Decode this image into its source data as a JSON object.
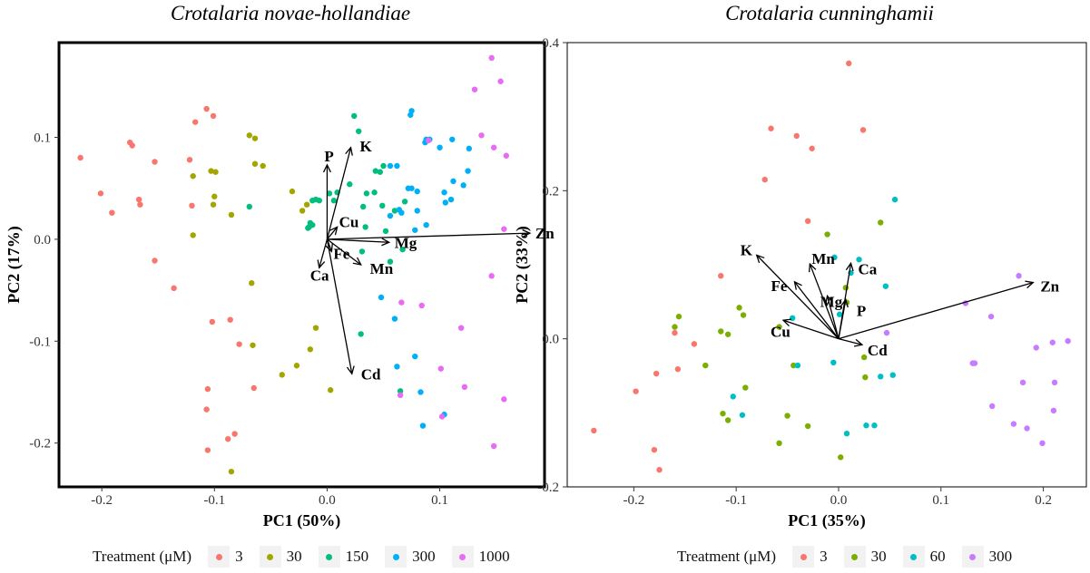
{
  "chart_data": [
    {
      "type": "scatter",
      "title": "Crotalaria novae-hollandiae",
      "xlabel": "PC1 (50%)",
      "ylabel": "PC2 (17%)",
      "xlim": [
        -0.238,
        0.193
      ],
      "ylim": [
        -0.243,
        0.193
      ],
      "xticks": [
        -0.2,
        -0.1,
        0.0,
        0.1
      ],
      "xtick_labels": [
        "-0.2",
        "-0.1",
        "0.0",
        "0.1"
      ],
      "yticks": [
        -0.2,
        -0.1,
        0.0,
        0.1
      ],
      "ytick_labels": [
        "-0.2",
        "-0.1",
        "0.0",
        "0.1"
      ],
      "grid": false,
      "legend_title": "Treatment (μM)",
      "legend_position": "bottom",
      "series": [
        {
          "name": "3",
          "color": "#f8766d",
          "points": [
            [
              -0.219,
              0.08
            ],
            [
              -0.201,
              0.045
            ],
            [
              -0.191,
              0.026
            ],
            [
              -0.175,
              0.095
            ],
            [
              -0.173,
              0.092
            ],
            [
              -0.167,
              0.039
            ],
            [
              -0.166,
              0.034
            ],
            [
              -0.153,
              0.076
            ],
            [
              -0.153,
              -0.021
            ],
            [
              -0.136,
              -0.048
            ],
            [
              -0.122,
              0.078
            ],
            [
              -0.12,
              0.033
            ],
            [
              -0.117,
              0.115
            ],
            [
              -0.107,
              0.128
            ],
            [
              -0.106,
              -0.147
            ],
            [
              -0.107,
              -0.167
            ],
            [
              -0.106,
              -0.207
            ],
            [
              -0.102,
              -0.081
            ],
            [
              -0.101,
              0.121
            ],
            [
              -0.088,
              -0.196
            ],
            [
              -0.086,
              -0.079
            ],
            [
              -0.082,
              -0.191
            ],
            [
              -0.078,
              -0.103
            ],
            [
              -0.065,
              -0.146
            ]
          ]
        },
        {
          "name": "30",
          "color": "#a3a500",
          "points": [
            [
              -0.119,
              0.062
            ],
            [
              -0.119,
              0.004
            ],
            [
              -0.103,
              0.067
            ],
            [
              -0.099,
              0.066
            ],
            [
              -0.101,
              0.034
            ],
            [
              -0.1,
              0.042
            ],
            [
              -0.085,
              0.024
            ],
            [
              -0.085,
              -0.228
            ],
            [
              -0.069,
              0.102
            ],
            [
              -0.064,
              0.099
            ],
            [
              -0.064,
              0.074
            ],
            [
              -0.057,
              0.072
            ],
            [
              -0.067,
              -0.043
            ],
            [
              -0.066,
              -0.104
            ],
            [
              -0.04,
              -0.133
            ],
            [
              -0.031,
              0.047
            ],
            [
              -0.027,
              -0.124
            ],
            [
              -0.015,
              -0.108
            ],
            [
              -0.01,
              -0.087
            ],
            [
              -0.022,
              0.028
            ],
            [
              -0.018,
              0.034
            ],
            [
              0.003,
              -0.148
            ]
          ]
        },
        {
          "name": "150",
          "color": "#00bf7d",
          "points": [
            [
              -0.069,
              0.032
            ],
            [
              -0.013,
              0.038
            ],
            [
              -0.01,
              0.039
            ],
            [
              -0.007,
              0.038
            ],
            [
              -0.016,
              0.012
            ],
            [
              -0.015,
              0.016
            ],
            [
              -0.013,
              0.014
            ],
            [
              -0.017,
              0.011
            ],
            [
              0.002,
              0.045
            ],
            [
              0.006,
              0.038
            ],
            [
              0.009,
              0.046
            ],
            [
              0.024,
              0.121
            ],
            [
              0.028,
              0.106
            ],
            [
              0.02,
              0.054
            ],
            [
              0.032,
              0.032
            ],
            [
              0.034,
              0.012
            ],
            [
              0.035,
              0.045
            ],
            [
              0.043,
              0.067
            ],
            [
              0.047,
              0.066
            ],
            [
              0.05,
              0.072
            ],
            [
              0.042,
              0.046
            ],
            [
              0.049,
              0.033
            ],
            [
              0.031,
              -0.012
            ],
            [
              0.056,
              -0.022
            ],
            [
              0.067,
              -0.01
            ],
            [
              0.06,
              0.028
            ],
            [
              0.069,
              0.037
            ],
            [
              0.065,
              -0.149
            ],
            [
              0.03,
              -0.093
            ],
            [
              0.052,
              0.008
            ]
          ]
        },
        {
          "name": "300",
          "color": "#00b0f6",
          "points": [
            [
              0.056,
              0.072
            ],
            [
              0.062,
              0.072
            ],
            [
              0.066,
              0.026
            ],
            [
              0.056,
              0.023
            ],
            [
              0.064,
              0.029
            ],
            [
              0.075,
              0.126
            ],
            [
              0.074,
              0.122
            ],
            [
              0.072,
              0.05
            ],
            [
              0.08,
              0.047
            ],
            [
              0.08,
              0.028
            ],
            [
              0.078,
              0.009
            ],
            [
              0.087,
              0.095
            ],
            [
              0.088,
              0.098
            ],
            [
              0.091,
              0.098
            ],
            [
              0.1,
              0.09
            ],
            [
              0.104,
              0.046
            ],
            [
              0.105,
              0.036
            ],
            [
              0.111,
              0.098
            ],
            [
              0.112,
              0.057
            ],
            [
              0.126,
              0.089
            ],
            [
              0.125,
              0.067
            ],
            [
              0.121,
              0.053
            ],
            [
              0.11,
              0.039
            ],
            [
              0.088,
              0.014
            ],
            [
              0.048,
              -0.057
            ],
            [
              0.06,
              -0.078
            ],
            [
              0.075,
              0.05
            ],
            [
              0.062,
              -0.125
            ],
            [
              0.078,
              -0.115
            ],
            [
              0.085,
              -0.183
            ],
            [
              0.083,
              -0.15
            ],
            [
              0.104,
              -0.172
            ]
          ]
        },
        {
          "name": "1000",
          "color": "#e76bf3",
          "points": [
            [
              0.09,
              0.097
            ],
            [
              0.131,
              0.147
            ],
            [
              0.137,
              0.102
            ],
            [
              0.146,
              0.178
            ],
            [
              0.154,
              0.155
            ],
            [
              0.148,
              0.09
            ],
            [
              0.159,
              0.082
            ],
            [
              0.157,
              0.01
            ],
            [
              0.146,
              -0.036
            ],
            [
              0.066,
              -0.062
            ],
            [
              0.084,
              -0.065
            ],
            [
              0.119,
              -0.087
            ],
            [
              0.101,
              -0.127
            ],
            [
              0.102,
              -0.174
            ],
            [
              0.122,
              -0.145
            ],
            [
              0.148,
              -0.203
            ],
            [
              0.157,
              -0.157
            ],
            [
              0.065,
              -0.153
            ]
          ]
        }
      ],
      "vectors": [
        {
          "label": "K",
          "x": 0.021,
          "y": 0.09
        },
        {
          "label": "P",
          "x": 0.0,
          "y": 0.073
        },
        {
          "label": "Zn",
          "x": 0.18,
          "y": 0.006
        },
        {
          "label": "Cu",
          "x": 0.009,
          "y": 0.012
        },
        {
          "label": "Mg",
          "x": 0.055,
          "y": -0.003
        },
        {
          "label": "Fe",
          "x": 0.004,
          "y": -0.012
        },
        {
          "label": "Mn",
          "x": 0.03,
          "y": -0.025
        },
        {
          "label": "Ca",
          "x": -0.007,
          "y": -0.028
        },
        {
          "label": "Cd",
          "x": 0.022,
          "y": -0.132
        }
      ]
    },
    {
      "type": "scatter",
      "title": "Crotalaria cunninghamii",
      "xlabel": "PC1 (35%)",
      "ylabel": "PC2 (33%)",
      "xlim": [
        -0.265,
        0.242
      ],
      "ylim": [
        -0.2,
        0.4
      ],
      "xticks": [
        -0.2,
        -0.1,
        0.0,
        0.1,
        0.2
      ],
      "xtick_labels": [
        "-0.2",
        "-0.1",
        "0.0",
        "0.1",
        "0.2"
      ],
      "yticks": [
        -0.2,
        0.0,
        0.2,
        0.4
      ],
      "ytick_labels": [
        "-0.2",
        "0.0",
        "0.2",
        "0.4"
      ],
      "grid": false,
      "legend_title": "Treatment (μM)",
      "legend_position": "bottom",
      "series": [
        {
          "name": "3",
          "color": "#f8766d",
          "points": [
            [
              0.01,
              0.372
            ],
            [
              -0.066,
              0.284
            ],
            [
              0.024,
              0.282
            ],
            [
              -0.041,
              0.274
            ],
            [
              -0.026,
              0.257
            ],
            [
              -0.072,
              0.215
            ],
            [
              -0.03,
              0.159
            ],
            [
              -0.115,
              0.085
            ],
            [
              -0.157,
              -0.041
            ],
            [
              -0.16,
              0.008
            ],
            [
              -0.141,
              -0.007
            ],
            [
              -0.178,
              -0.047
            ],
            [
              -0.198,
              -0.071
            ],
            [
              -0.239,
              -0.124
            ],
            [
              -0.175,
              -0.177
            ],
            [
              -0.18,
              -0.15
            ]
          ]
        },
        {
          "name": "30",
          "color": "#7cae00",
          "points": [
            [
              -0.011,
              0.141
            ],
            [
              0.041,
              0.157
            ],
            [
              0.007,
              0.069
            ],
            [
              0.008,
              0.049
            ],
            [
              -0.097,
              0.042
            ],
            [
              -0.093,
              0.032
            ],
            [
              -0.156,
              0.03
            ],
            [
              -0.16,
              0.016
            ],
            [
              -0.115,
              0.01
            ],
            [
              -0.108,
              0.006
            ],
            [
              -0.13,
              -0.036
            ],
            [
              -0.091,
              -0.066
            ],
            [
              -0.113,
              -0.101
            ],
            [
              -0.108,
              -0.11
            ],
            [
              -0.05,
              -0.104
            ],
            [
              -0.058,
              -0.141
            ],
            [
              -0.03,
              -0.118
            ],
            [
              -0.044,
              -0.036
            ],
            [
              0.025,
              -0.025
            ],
            [
              0.026,
              -0.052
            ],
            [
              0.002,
              -0.16
            ],
            [
              -0.058,
              0.016
            ]
          ]
        },
        {
          "name": "60",
          "color": "#00bfc4",
          "points": [
            [
              -0.004,
              0.11
            ],
            [
              0.02,
              0.107
            ],
            [
              0.012,
              0.089
            ],
            [
              0.055,
              0.188
            ],
            [
              0.046,
              0.071
            ],
            [
              0.001,
              0.033
            ],
            [
              -0.045,
              0.028
            ],
            [
              -0.005,
              -0.032
            ],
            [
              -0.04,
              -0.036
            ],
            [
              -0.103,
              -0.078
            ],
            [
              -0.094,
              -0.103
            ],
            [
              0.027,
              -0.117
            ],
            [
              0.035,
              -0.117
            ],
            [
              0.041,
              -0.051
            ],
            [
              0.053,
              -0.049
            ],
            [
              0.008,
              -0.128
            ]
          ]
        },
        {
          "name": "300",
          "color": "#c77cff",
          "points": [
            [
              0.176,
              0.085
            ],
            [
              0.124,
              0.048
            ],
            [
              0.149,
              0.03
            ],
            [
              0.131,
              -0.033
            ],
            [
              0.133,
              -0.033
            ],
            [
              0.193,
              -0.012
            ],
            [
              0.209,
              -0.005
            ],
            [
              0.224,
              -0.003
            ],
            [
              0.18,
              -0.059
            ],
            [
              0.211,
              -0.059
            ],
            [
              0.15,
              -0.091
            ],
            [
              0.21,
              -0.097
            ],
            [
              0.171,
              -0.115
            ],
            [
              0.184,
              -0.121
            ],
            [
              0.199,
              -0.141
            ],
            [
              0.047,
              0.008
            ]
          ]
        }
      ],
      "vectors": [
        {
          "label": "Zn",
          "x": 0.19,
          "y": 0.076
        },
        {
          "label": "K",
          "x": -0.08,
          "y": 0.113
        },
        {
          "label": "Fe",
          "x": -0.043,
          "y": 0.077
        },
        {
          "label": "Mn",
          "x": -0.028,
          "y": 0.101
        },
        {
          "label": "Ca",
          "x": 0.012,
          "y": 0.102
        },
        {
          "label": "Mg",
          "x": -0.011,
          "y": 0.058
        },
        {
          "label": "P",
          "x": 0.007,
          "y": 0.053
        },
        {
          "label": "Cu",
          "x": -0.054,
          "y": 0.025
        },
        {
          "label": "Cd",
          "x": 0.023,
          "y": -0.008
        }
      ]
    }
  ]
}
